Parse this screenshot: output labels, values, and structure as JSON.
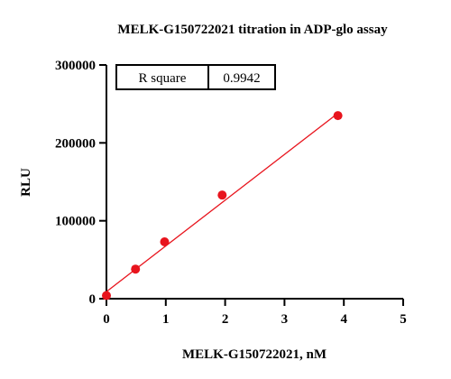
{
  "chart_data": {
    "type": "scatter",
    "title": "MELK-G150722021 titration in  ADP-glo assay",
    "xlabel": "MELK-G150722021, nM",
    "ylabel": "RLU",
    "xlim": [
      0,
      5
    ],
    "ylim": [
      0,
      300000
    ],
    "x_ticks": [
      "0",
      "1",
      "2",
      "3",
      "4",
      "5"
    ],
    "y_ticks": [
      "0",
      "100000",
      "200000",
      "300000"
    ],
    "grid": false,
    "series": [
      {
        "color": "#e8141d",
        "points": [
          {
            "x": 0,
            "y": 4000
          },
          {
            "x": 0.49,
            "y": 38000
          },
          {
            "x": 0.98,
            "y": 73000
          },
          {
            "x": 1.95,
            "y": 133000
          },
          {
            "x": 3.9,
            "y": 235000
          }
        ],
        "fit_line": {
          "x": [
            0,
            3.9
          ],
          "y": [
            9000,
            238000
          ]
        }
      }
    ],
    "annotation_table": {
      "label": "R square",
      "value": "0.9942"
    }
  }
}
